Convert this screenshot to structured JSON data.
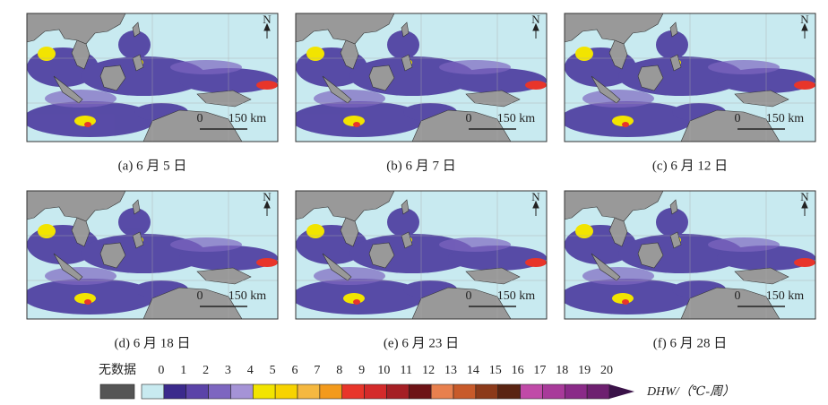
{
  "panels": [
    {
      "caption": "(a) 6 月 5 日"
    },
    {
      "caption": "(b) 6 月 7 日"
    },
    {
      "caption": "(c) 6 月 12 日"
    },
    {
      "caption": "(d) 6 月 18 日"
    },
    {
      "caption": "(e) 6 月 23 日"
    },
    {
      "caption": "(f) 6 月 28 日"
    }
  ],
  "map": {
    "north": "N",
    "scale_start": "0",
    "scale_end": "150 km"
  },
  "colorbar": {
    "no_data_label": "无数据",
    "no_data_color": "#555555",
    "ticks": [
      0,
      1,
      2,
      3,
      4,
      5,
      6,
      7,
      8,
      9,
      10,
      11,
      12,
      13,
      14,
      15,
      16,
      17,
      18,
      19,
      20
    ],
    "colors": [
      "#c8eaf0",
      "#3b2a8c",
      "#5b43a8",
      "#7d66c0",
      "#a593d6",
      "#f2e400",
      "#f7d300",
      "#f5b840",
      "#f39a1c",
      "#e8352a",
      "#d42a2a",
      "#a51f24",
      "#6e1316",
      "#e8804e",
      "#c85a2a",
      "#8c3a1a",
      "#5a2412",
      "#c04aa8",
      "#a83a9a",
      "#8a2a88",
      "#6e2070"
    ],
    "over_color": "#3a1248",
    "unit_label": "DHW/（℃-周）"
  }
}
